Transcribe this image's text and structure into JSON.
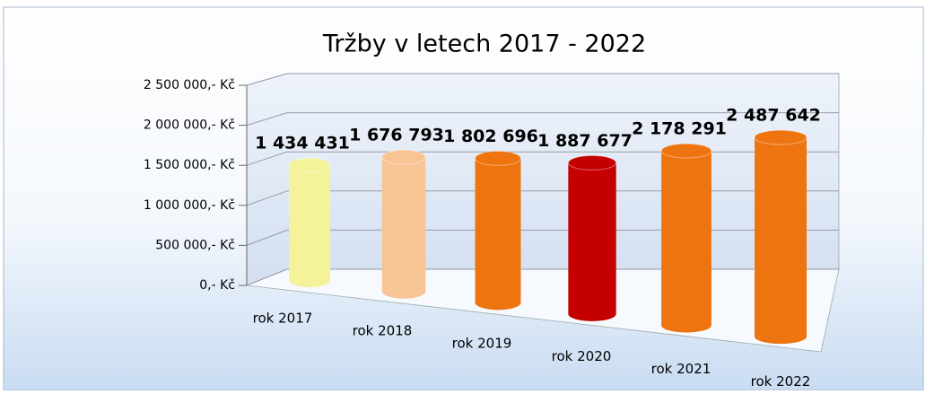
{
  "chart_data": {
    "type": "bar",
    "title": "Tržby v letech 2017 - 2022",
    "categories": [
      "rok 2017",
      "rok 2018",
      "rok 2019",
      "rok 2020",
      "rok 2021",
      "rok 2022"
    ],
    "values": [
      1434431,
      1676793,
      1802696,
      1887677,
      2178291,
      2487642
    ],
    "value_labels": [
      "1 434 431",
      "1 676 793",
      "1 802 696",
      "1 887 677",
      "2 178 291",
      "2 487 642"
    ],
    "colors": [
      "#f4f39a",
      "#f7c594",
      "#ee7410",
      "#c40000",
      "#ee7410",
      "#ee7410"
    ],
    "ylim": [
      0,
      2500000
    ],
    "yticks": [
      {
        "value": 0,
        "label": "0,- Kč"
      },
      {
        "value": 500000,
        "label": "500 000,- Kč"
      },
      {
        "value": 1000000,
        "label": "1 000 000,- Kč"
      },
      {
        "value": 1500000,
        "label": "1 500 000,- Kč"
      },
      {
        "value": 2000000,
        "label": "2 000 000,- Kč"
      },
      {
        "value": 2500000,
        "label": "2 500 000,- Kč"
      }
    ],
    "grid": true
  }
}
